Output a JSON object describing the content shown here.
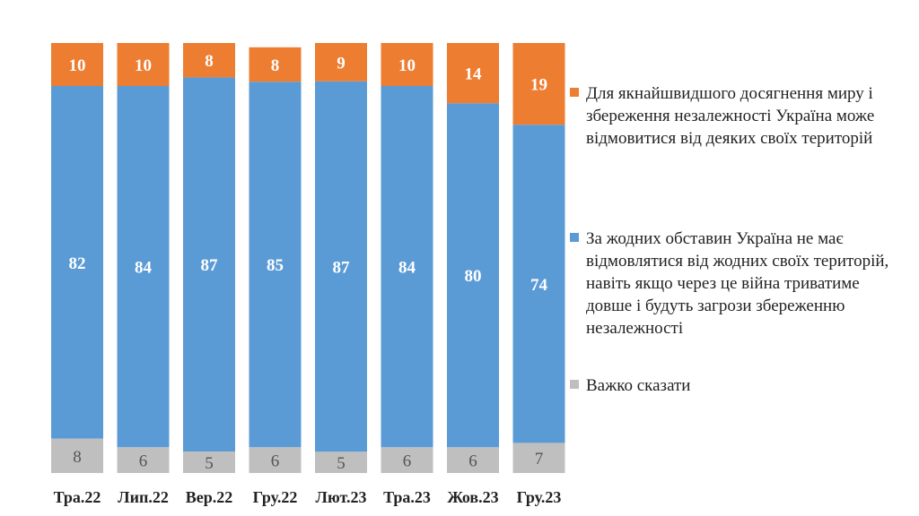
{
  "chart_data": {
    "type": "bar",
    "stacked": true,
    "categories": [
      "Тра.22",
      "Лип.22",
      "Вер.22",
      "Гру.22",
      "Лют.23",
      "Тра.23",
      "Жов.23",
      "Гру.23"
    ],
    "series": [
      {
        "name": "Важко сказати",
        "color": "#bfbfbf",
        "label_color": "#555555",
        "values": [
          8,
          6,
          5,
          6,
          5,
          6,
          6,
          7
        ]
      },
      {
        "name": "За жодних обставин Україна не має відмовлятися від жодних своїх територій, навіть якщо через це війна триватиме довше і будуть загрози збереженню незалежності",
        "color": "#5b9bd5",
        "label_color": "#ffffff",
        "values": [
          82,
          84,
          87,
          85,
          87,
          84,
          80,
          74
        ]
      },
      {
        "name": "Для якнайшвидшого досягнення миру і збереження незалежності Україна може відмовитися від деяких своїх територій",
        "color": "#ed7d31",
        "label_color": "#ffffff",
        "values": [
          10,
          10,
          8,
          8,
          9,
          10,
          14,
          19
        ]
      }
    ],
    "ylim": [
      0,
      100
    ],
    "legend_position": "right",
    "grid": false
  },
  "legend": {
    "items": [
      {
        "label": "Для якнайшвидшого досягнення миру і збереження незалежності Україна може відмовитися від деяких своїх територій",
        "color": "#ed7d31"
      },
      {
        "label": "За жодних обставин Україна не має відмовлятися від жодних своїх територій, навіть якщо через це війна триватиме довше і будуть загрози збереженню незалежності",
        "color": "#5b9bd5"
      },
      {
        "label": "Важко сказати",
        "color": "#bfbfbf"
      }
    ]
  }
}
